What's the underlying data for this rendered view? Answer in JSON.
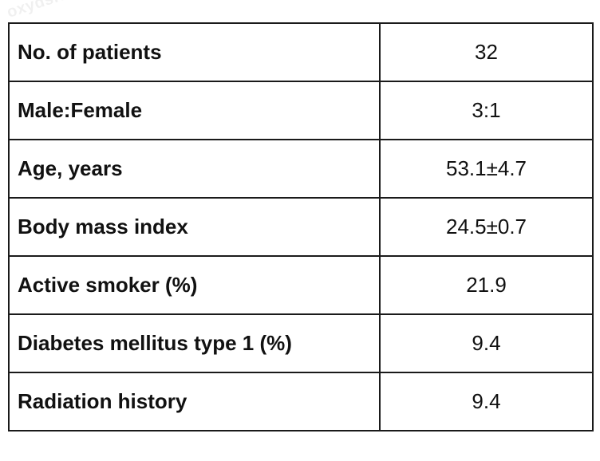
{
  "watermark": "oxyds.com",
  "rows": [
    {
      "label": "No. of patients",
      "value": "32"
    },
    {
      "label": "Male:Female",
      "value": "3:1"
    },
    {
      "label": "Age, years",
      "value": "53.1±4.7"
    },
    {
      "label": "Body mass index",
      "value": "24.5±0.7"
    },
    {
      "label": "Active smoker (%)",
      "value": "21.9"
    },
    {
      "label": "Diabetes mellitus type 1 (%)",
      "value": "9.4"
    },
    {
      "label": "Radiation history",
      "value": "9.4"
    }
  ]
}
